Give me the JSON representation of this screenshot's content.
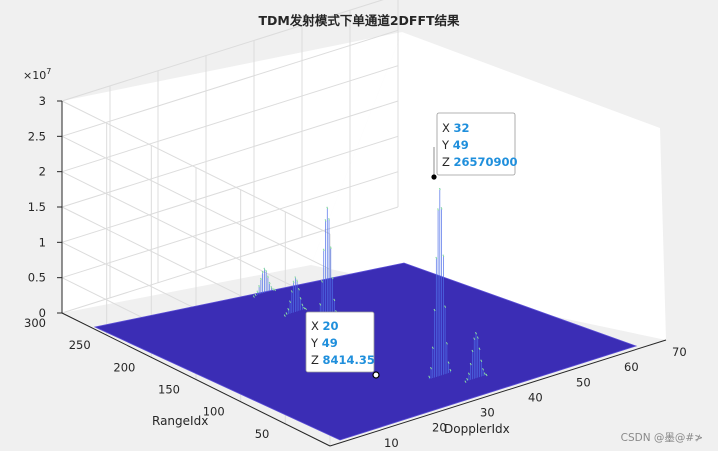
{
  "chart_data": {
    "type": "surface",
    "title": "TDM发射模式下单通道2DFFT结果",
    "xlabel": "DopplerIdx",
    "ylabel": "RangeIdx",
    "zlabel": "",
    "z_exponent": "×10",
    "z_exponent_power": "7",
    "xlim": [
      0,
      70
    ],
    "ylim": [
      0,
      300
    ],
    "zlim": [
      0,
      30000000
    ],
    "x_ticks": [
      "0",
      "10",
      "20",
      "30",
      "40",
      "50",
      "60",
      "70"
    ],
    "y_ticks": [
      "0",
      "50",
      "100",
      "150",
      "200",
      "250",
      "300"
    ],
    "z_ticks": [
      "0",
      "0.5",
      "1",
      "1.5",
      "2",
      "2.5",
      "3"
    ],
    "grid": true,
    "peaks": [
      {
        "x": 32,
        "y": 49,
        "z": 26570900
      },
      {
        "x": 32,
        "y": 175,
        "z": 16000000
      },
      {
        "x": 30,
        "y": 200,
        "z": 5000000
      },
      {
        "x": 36,
        "y": 30,
        "z": 6500000
      },
      {
        "x": 31,
        "y": 240,
        "z": 3500000
      }
    ],
    "datatips": [
      {
        "x_label": "X",
        "x_value": "32",
        "y_label": "Y",
        "y_value": "49",
        "z_label": "Z",
        "z_value": "26570900"
      },
      {
        "x_label": "X",
        "x_value": "20",
        "y_label": "Y",
        "y_value": "49",
        "z_label": "Z",
        "z_value": "8414.35"
      }
    ]
  },
  "watermark": "CSDN @墨@#≯",
  "colors": {
    "surface": "#3b2db5",
    "surface_edge": "#5b4fd6",
    "peak_line": "#4f6fe8",
    "peak_top": "#8fe89a",
    "axis": "#262626",
    "grid": "#dcdcdc",
    "datatip_value": "#1f8fdc"
  }
}
